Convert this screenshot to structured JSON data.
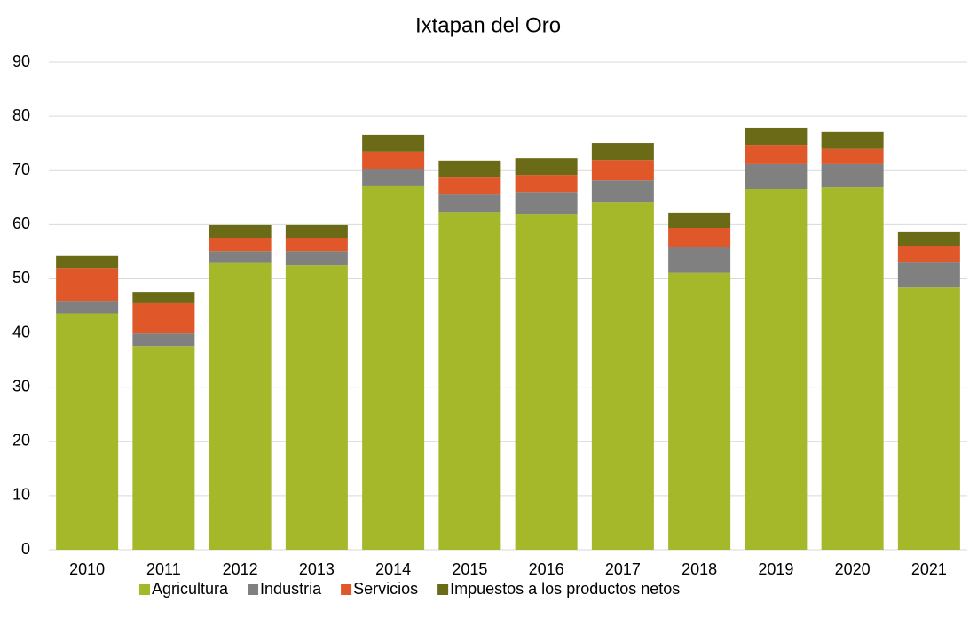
{
  "chart_data": {
    "type": "stacked_bar",
    "title": "Ixtapan del Oro",
    "categories": [
      "2010",
      "2011",
      "2012",
      "2013",
      "2014",
      "2015",
      "2016",
      "2017",
      "2018",
      "2019",
      "2020",
      "2021"
    ],
    "series": [
      {
        "name": "Agricultura",
        "color": "#a5b82a",
        "values": [
          43.6,
          37.6,
          52.9,
          52.5,
          67.1,
          62.3,
          62.0,
          64.1,
          51.1,
          66.6,
          66.9,
          48.4
        ]
      },
      {
        "name": "Industria",
        "color": "#808080",
        "values": [
          2.2,
          2.3,
          2.2,
          2.6,
          3.1,
          3.3,
          3.9,
          4.1,
          4.7,
          4.6,
          4.3,
          4.6
        ]
      },
      {
        "name": "Servicios",
        "color": "#e0572a",
        "values": [
          6.2,
          5.6,
          2.5,
          2.5,
          3.3,
          3.1,
          3.3,
          3.6,
          3.6,
          3.4,
          2.8,
          3.1
        ]
      },
      {
        "name": "Impuestos a los productos netos",
        "color": "#6b6b17",
        "values": [
          2.2,
          2.1,
          2.3,
          2.3,
          3.1,
          3.0,
          3.1,
          3.3,
          2.8,
          3.3,
          3.1,
          2.5
        ]
      }
    ],
    "ylim": [
      0,
      90
    ],
    "yticks": [
      0,
      10,
      20,
      30,
      40,
      50,
      60,
      70,
      80,
      90
    ],
    "grid": true,
    "legend": "bottom"
  }
}
